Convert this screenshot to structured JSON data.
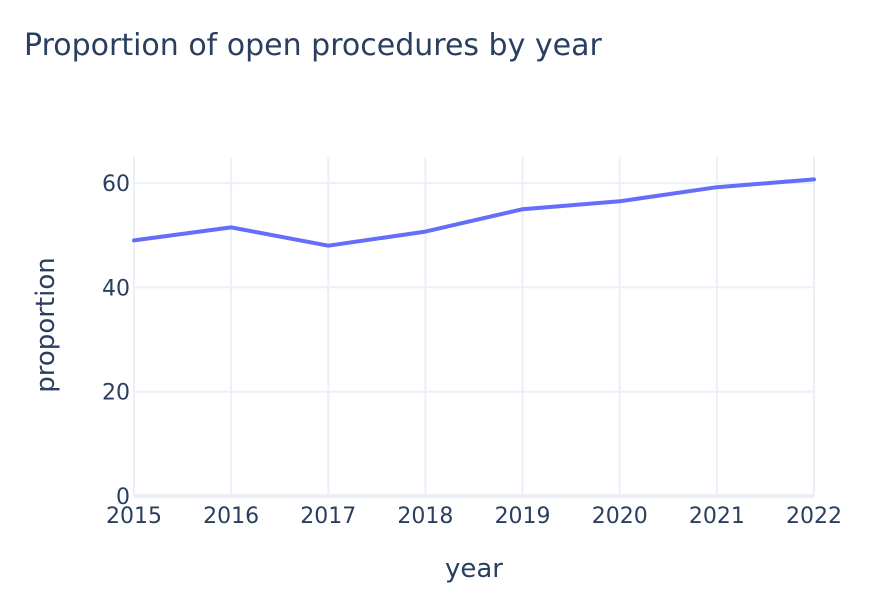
{
  "chart_data": {
    "type": "line",
    "title": "Proportion of open procedures by year",
    "xlabel": "year",
    "ylabel": "proportion",
    "x": [
      2015,
      2016,
      2017,
      2018,
      2019,
      2020,
      2021,
      2022
    ],
    "series": [
      {
        "values": [
          49.0,
          51.5,
          48.0,
          50.7,
          55.0,
          56.5,
          59.2,
          60.7
        ],
        "color": "#636efa"
      }
    ],
    "xlim": [
      2015,
      2022
    ],
    "ylim": [
      0,
      65
    ],
    "xticks": [
      "2015",
      "2016",
      "2017",
      "2018",
      "2019",
      "2020",
      "2021",
      "2022"
    ],
    "yticks": [
      "0",
      "20",
      "40",
      "60"
    ],
    "grid": true,
    "legend": "none"
  }
}
